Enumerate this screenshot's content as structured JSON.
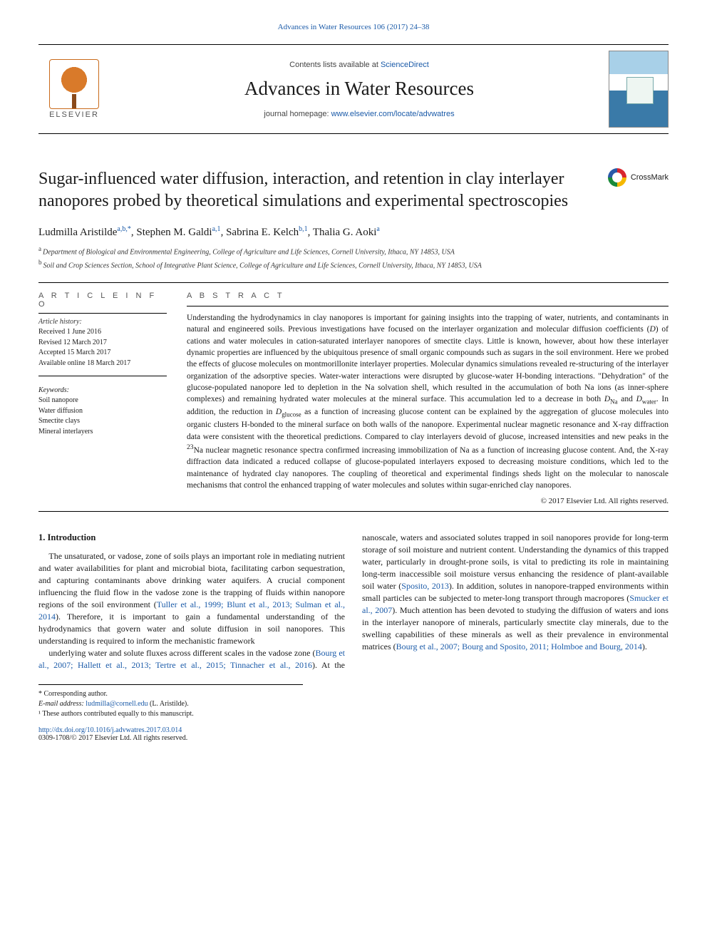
{
  "header": {
    "topCitation": "Advances in Water Resources 106 (2017) 24–38",
    "contentsLine": "Contents lists available at ",
    "contentsLinkText": "ScienceDirect",
    "journalName": "Advances in Water Resources",
    "homepageLabel": "journal homepage: ",
    "homepageUrl": "www.elsevier.com/locate/advwatres",
    "publisherName": "ELSEVIER",
    "crossmarkLabel": "CrossMark"
  },
  "article": {
    "title": "Sugar-influenced water diffusion, interaction, and retention in clay interlayer nanopores probed by theoretical simulations and experimental spectroscopies",
    "authorsHtml": "Ludmilla Aristilde<sup>a,b,*</sup>, Stephen M. Galdi<sup>a,1</sup>, Sabrina E. Kelch<sup>b,1</sup>, Thalia G. Aoki<sup>a</sup>",
    "affiliations": [
      {
        "marker": "a",
        "text": "Department of Biological and Environmental Engineering, College of Agriculture and Life Sciences, Cornell University, Ithaca, NY 14853, USA"
      },
      {
        "marker": "b",
        "text": "Soil and Crop Sciences Section, School of Integrative Plant Science, College of Agriculture and Life Sciences, Cornell University, Ithaca, NY 14853, USA"
      }
    ]
  },
  "meta": {
    "infoHeading": "A R T I C L E   I N F O",
    "historyLabel": "Article history:",
    "history": [
      "Received 1 June 2016",
      "Revised 12 March 2017",
      "Accepted 15 March 2017",
      "Available online 18 March 2017"
    ],
    "keywordsLabel": "Keywords:",
    "keywords": [
      "Soil nanopore",
      "Water diffusion",
      "Smectite clays",
      "Mineral interlayers"
    ]
  },
  "abstract": {
    "heading": "A B S T R A C T",
    "textHtml": "Understanding the hydrodynamics in clay nanopores is important for gaining insights into the trapping of water, nutrients, and contaminants in natural and engineered soils. Previous investigations have focused on the interlayer organization and molecular diffusion coefficients (<i>D</i>) of cations and water molecules in cation-saturated interlayer nanopores of smectite clays. Little is known, however, about how these interlayer dynamic properties are influenced by the ubiquitous presence of small organic compounds such as sugars in the soil environment. Here we probed the effects of glucose molecules on montmorillonite interlayer properties. Molecular dynamics simulations revealed re-structuring of the interlayer organization of the adsorptive species. Water-water interactions were disrupted by glucose-water H-bonding interactions. \"Dehydration\" of the glucose-populated nanopore led to depletion in the Na solvation shell, which resulted in the accumulation of both Na ions (as inner-sphere complexes) and remaining hydrated water molecules at the mineral surface. This accumulation led to a decrease in both <i>D</i><sub>Na</sub> and <i>D</i><sub>water</sub>. In addition, the reduction in <i>D</i><sub>glucose</sub> as a function of increasing glucose content can be explained by the aggregation of glucose molecules into organic clusters H-bonded to the mineral surface on both walls of the nanopore. Experimental nuclear magnetic resonance and X-ray diffraction data were consistent with the theoretical predictions. Compared to clay interlayers devoid of glucose, increased intensities and new peaks in the <sup>23</sup>Na nuclear magnetic resonance spectra confirmed increasing immobilization of Na as a function of increasing glucose content. And, the X-ray diffraction data indicated a reduced collapse of glucose-populated interlayers exposed to decreasing moisture conditions, which led to the maintenance of hydrated clay nanopores. The coupling of theoretical and experimental findings sheds light on the molecular to nanoscale mechanisms that control the enhanced trapping of water molecules and solutes within sugar-enriched clay nanopores.",
    "copyright": "© 2017 Elsevier Ltd. All rights reserved."
  },
  "body": {
    "sectionNumber": "1.",
    "sectionTitle": "Introduction",
    "para1Html": "The unsaturated, or vadose, zone of soils plays an important role in mediating nutrient and water availabilities for plant and microbial biota, facilitating carbon sequestration, and capturing contaminants above drinking water aquifers. A crucial component influencing the fluid flow in the vadose zone is the trapping of fluids within nanopore regions of the soil environment (<span class=\"cite\">Tuller et al., 1999; Blunt et al., 2013; Sulman et al., 2014</span>). Therefore, it is important to gain a fundamental understanding of the hydrodynamics that govern water and solute diffusion in soil nanopores. This understanding is required to inform the mechanistic framework",
    "para2Html": "underlying water and solute fluxes across different scales in the vadose zone (<span class=\"cite\">Bourg et al., 2007; Hallett et al., 2013; Tertre et al., 2015; Tinnacher et al., 2016</span>). At the nanoscale, waters and associated solutes trapped in soil nanopores provide for long-term storage of soil moisture and nutrient content. Understanding the dynamics of this trapped water, particularly in drought-prone soils, is vital to predicting its role in maintaining long-term inaccessible soil moisture versus enhancing the residence of plant-available soil water (<span class=\"cite\">Sposito, 2013</span>). In addition, solutes in nanopore-trapped environments within small particles can be subjected to meter-long transport through macropores (<span class=\"cite\">Smucker et al., 2007</span>). Much attention has been devoted to studying the diffusion of waters and ions in the interlayer nanopore of minerals, particularly smectite clay minerals, due to the swelling capabilities of these minerals as well as their prevalence in environmental matrices (<span class=\"cite\">Bourg et al., 2007; Bourg and Sposito, 2011; Holmboe and Bourg, 2014</span>)."
  },
  "footnotes": {
    "corresponding": "* Corresponding author.",
    "emailLabel": "E-mail address: ",
    "email": "ludmilla@cornell.edu",
    "emailAfter": " (L. Aristilde).",
    "equal": "¹ These authors contributed equally to this manuscript."
  },
  "doi": {
    "url": "http://dx.doi.org/10.1016/j.advwatres.2017.03.014",
    "issn": "0309-1708/© 2017 Elsevier Ltd. All rights reserved."
  },
  "colors": {
    "link": "#1a5aa8",
    "bodyText": "#1a1a1a",
    "metaGray": "#555555",
    "ruleColor": "#000000",
    "elsevierOrange": "#d97a2a"
  },
  "layout": {
    "pageWidth": 992,
    "pageHeight": 1323,
    "columns": 2,
    "columnGap": 24,
    "bodyFontSize": 12,
    "abstractFontSize": 11.5,
    "titleFontSize": 24,
    "journalNameFontSize": 27
  }
}
